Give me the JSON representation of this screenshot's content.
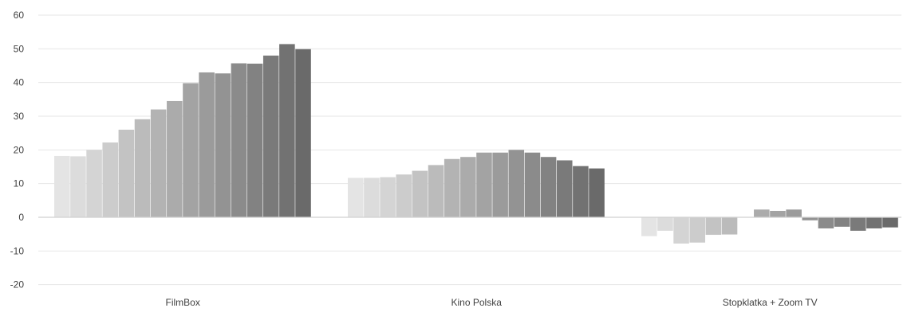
{
  "chart_data": {
    "type": "bar",
    "title": "",
    "xlabel": "",
    "ylabel": "",
    "ylim": [
      -20,
      60
    ],
    "yticks": [
      -20,
      -10,
      0,
      10,
      20,
      30,
      40,
      50,
      60
    ],
    "grid": true,
    "legend": "none",
    "categories": [
      "FilmBox",
      "Kino Polska",
      "Stopklatka + Zoom TV"
    ],
    "bars_per_category": 16,
    "values": [
      [
        18.2,
        18.1,
        20.0,
        22.2,
        26.0,
        29.1,
        32.0,
        34.5,
        39.8,
        43.0,
        42.7,
        45.7,
        45.6,
        48.0,
        51.4,
        49.9
      ],
      [
        11.7,
        11.7,
        11.9,
        12.7,
        13.8,
        15.5,
        17.3,
        17.9,
        19.2,
        19.2,
        20.0,
        19.2,
        17.9,
        16.9,
        15.2,
        14.5
      ],
      [
        -5.6,
        -4.0,
        -7.8,
        -7.5,
        -5.2,
        -5.1,
        0.0,
        2.3,
        1.9,
        2.3,
        -0.9,
        -3.3,
        -2.8,
        -4.0,
        -3.3,
        -3.0
      ]
    ],
    "colors": {
      "shade_light": "#e4e4e4",
      "shade_dark": "#6a6a6a",
      "grid": "#e6e6e6",
      "zero_line": "#d0d0d0",
      "text": "#404040"
    }
  }
}
